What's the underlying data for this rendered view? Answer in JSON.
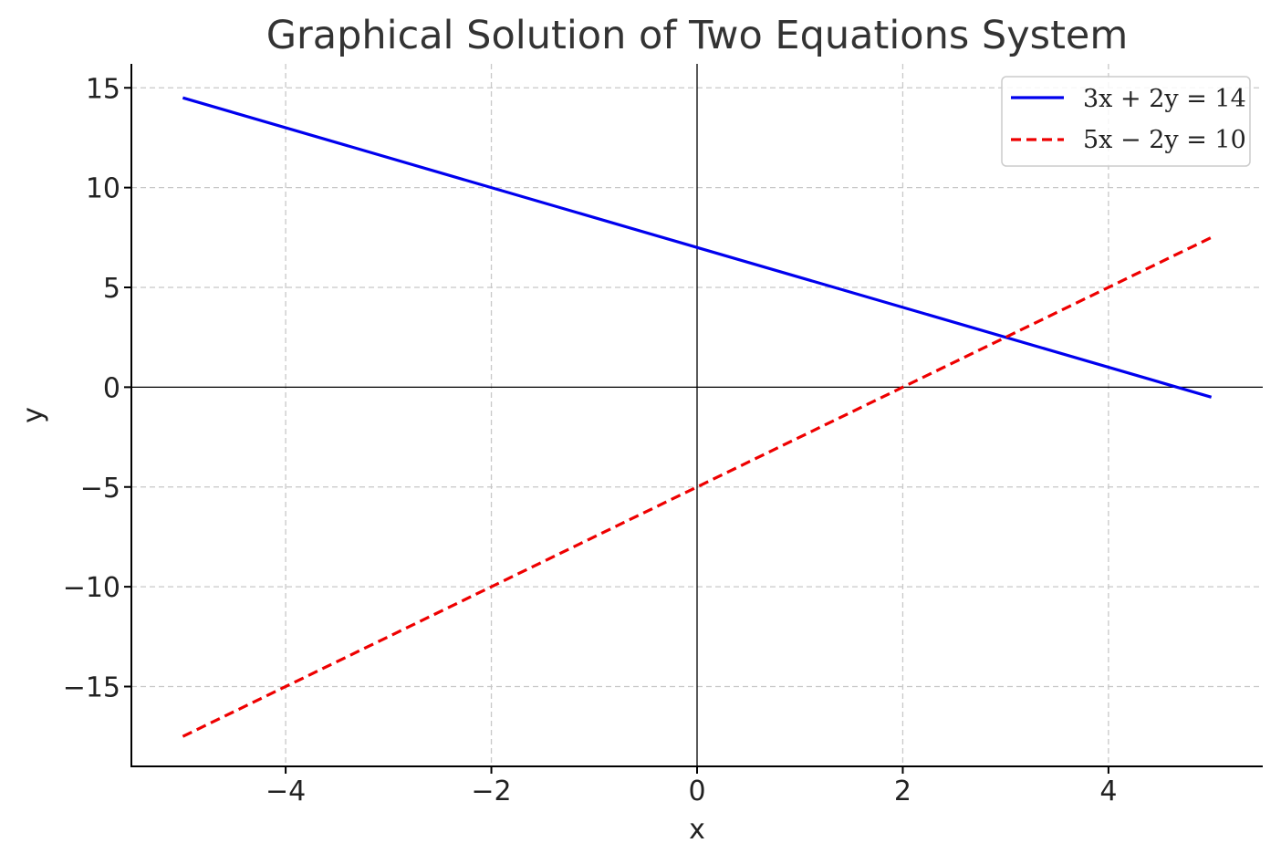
{
  "chart_data": {
    "type": "line",
    "title": "Graphical Solution of Two Equations System",
    "xlabel": "x",
    "ylabel": "y",
    "xlim": [
      -5.5,
      5.5
    ],
    "ylim": [
      -19.0,
      16.2
    ],
    "xticks": [
      -4,
      -2,
      0,
      2,
      4
    ],
    "yticks": [
      -15,
      -10,
      -5,
      0,
      5,
      10,
      15
    ],
    "xtick_labels": [
      "−4",
      "−2",
      "0",
      "2",
      "4"
    ],
    "ytick_labels": [
      "−15",
      "−10",
      "−5",
      "0",
      "5",
      "10",
      "15"
    ],
    "grid": true,
    "legend_position": "top-right",
    "series": [
      {
        "name": "3x + 2y = 14",
        "x": [
          -5,
          5
        ],
        "y": [
          14.5,
          -0.5
        ],
        "color": "#0000ee",
        "style": "solid"
      },
      {
        "name": "5x − 2y = 10",
        "x": [
          -5,
          5
        ],
        "y": [
          -17.5,
          7.5
        ],
        "color": "#ee0000",
        "style": "dashed"
      }
    ]
  }
}
